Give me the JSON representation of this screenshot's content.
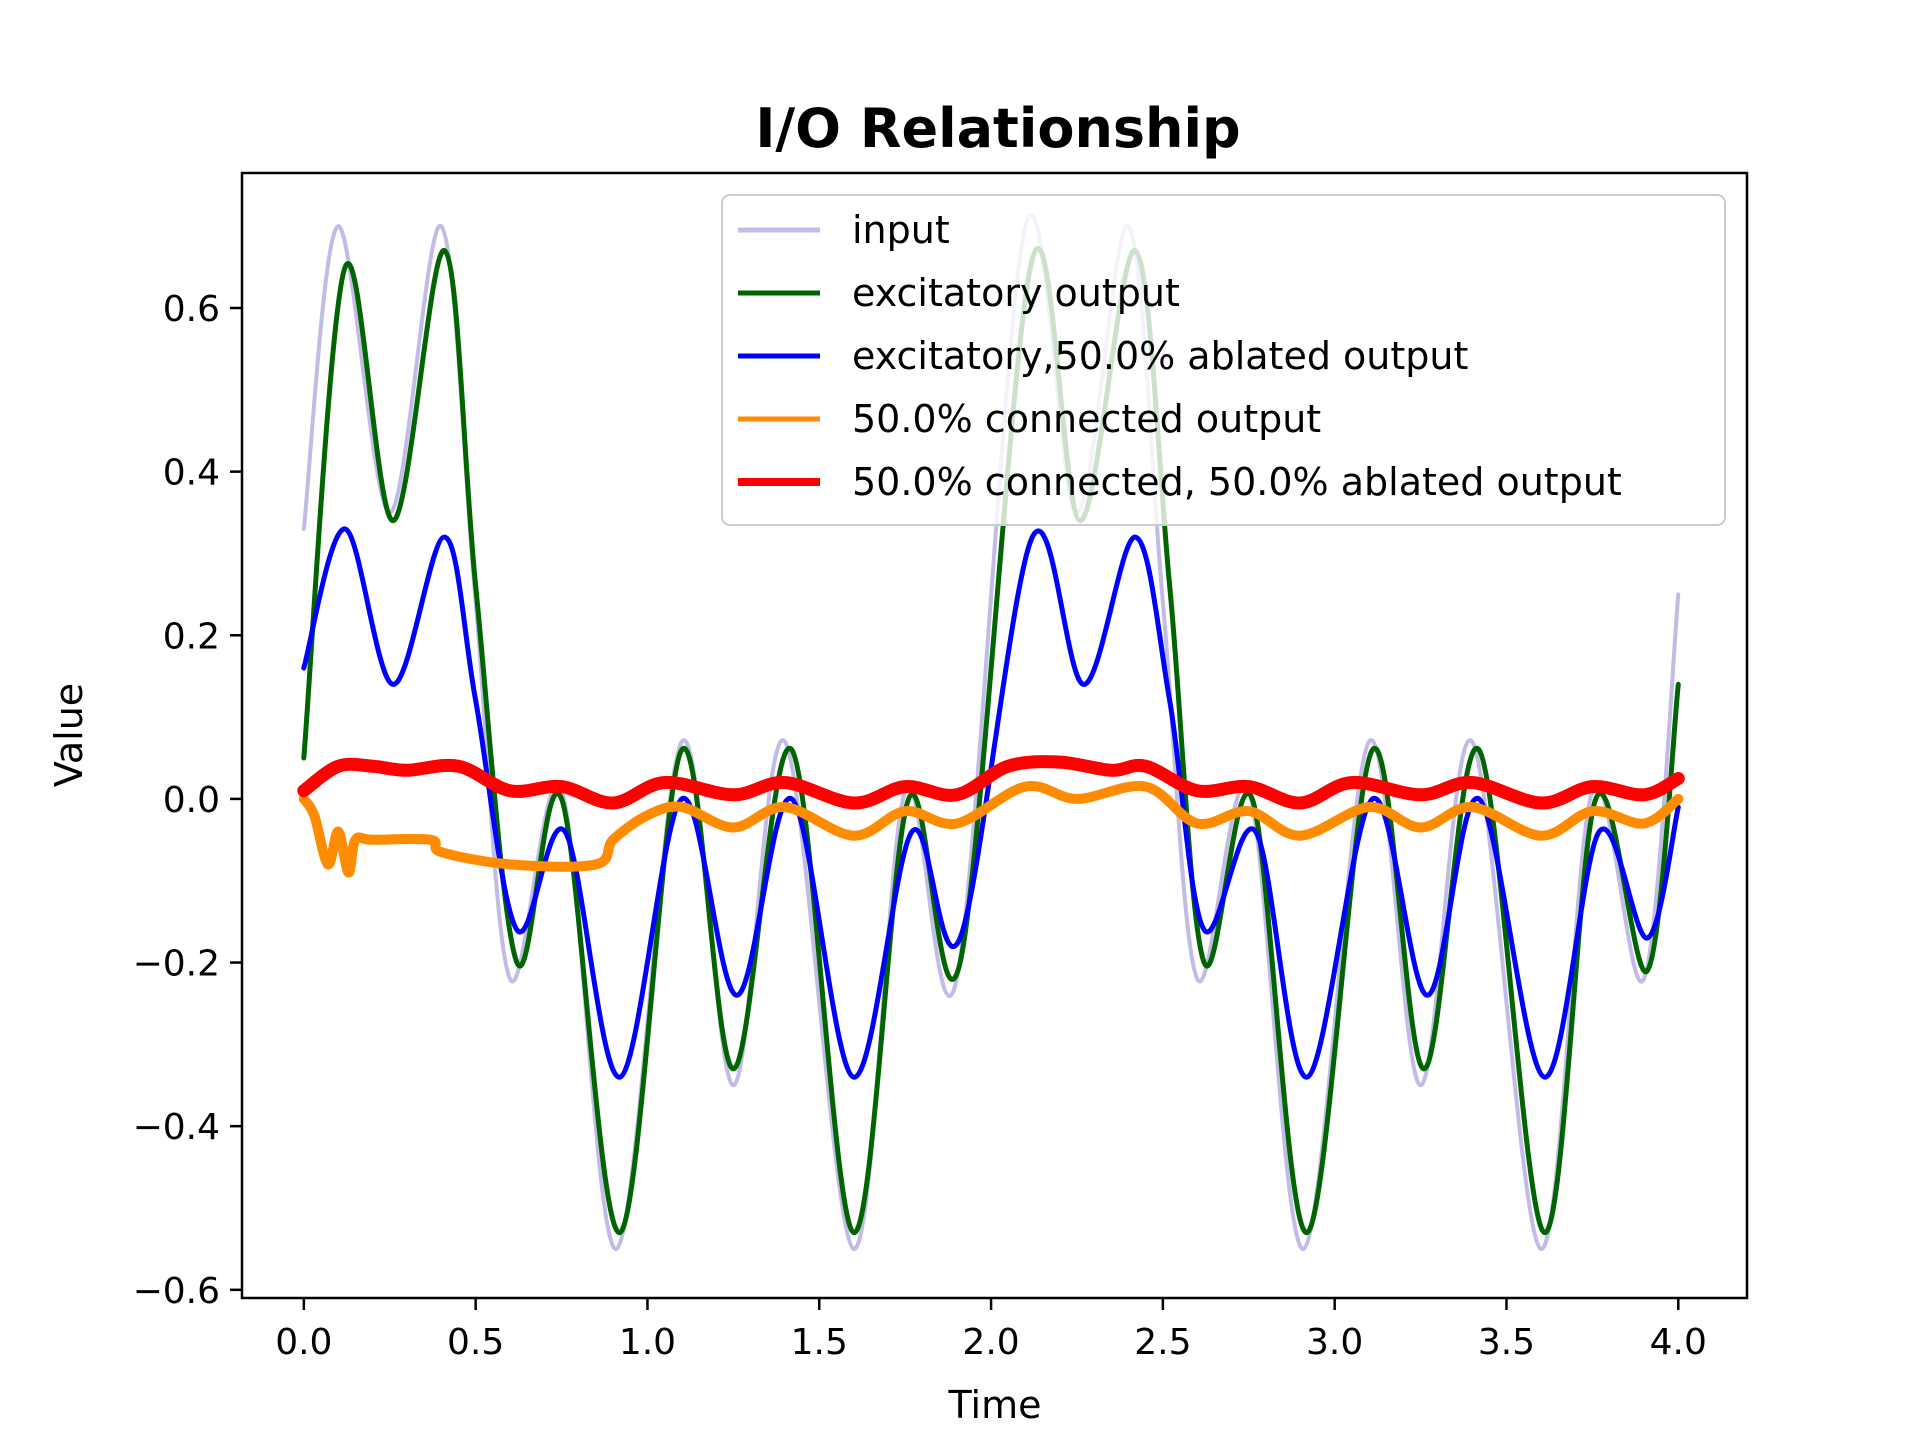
{
  "chart_data": {
    "type": "line",
    "title": "I/O Relationship",
    "xlabel": "Time",
    "ylabel": "Value",
    "xlim": [
      -0.18,
      4.2
    ],
    "ylim": [
      -0.61,
      0.765
    ],
    "xticks": [
      0.0,
      0.5,
      1.0,
      1.5,
      2.0,
      2.5,
      3.0,
      3.5,
      4.0
    ],
    "xtick_labels": [
      "0.0",
      "0.5",
      "1.0",
      "1.5",
      "2.0",
      "2.5",
      "3.0",
      "3.5",
      "4.0"
    ],
    "yticks": [
      -0.6,
      -0.4,
      -0.2,
      0.0,
      0.2,
      0.4,
      0.6
    ],
    "ytick_labels": [
      "−0.6",
      "−0.4",
      "−0.2",
      "0.0",
      "0.2",
      "0.4",
      "0.6"
    ],
    "grid": false,
    "legend_position": "upper right",
    "series": [
      {
        "name": "input",
        "color": "#c0bce6",
        "x": [
          0.0,
          0.1,
          0.25,
          0.4,
          0.5,
          0.6,
          0.75,
          0.91,
          1.1,
          1.25,
          1.4,
          1.6,
          1.75,
          1.9,
          2.1,
          2.25,
          2.4,
          2.5,
          2.6,
          2.75,
          2.91,
          3.1,
          3.25,
          3.4,
          3.6,
          3.75,
          3.9,
          4.0
        ],
        "y": [
          0.33,
          0.7,
          0.35,
          0.7,
          0.24,
          -0.22,
          0.01,
          -0.55,
          0.07,
          -0.35,
          0.07,
          -0.55,
          0.01,
          -0.22,
          0.7,
          0.35,
          0.7,
          0.24,
          -0.22,
          0.01,
          -0.55,
          0.07,
          -0.35,
          0.07,
          -0.55,
          0.01,
          -0.22,
          0.25
        ]
      },
      {
        "name": "excitatory output",
        "color": "#006400",
        "x": [
          0.0,
          0.12,
          0.26,
          0.41,
          0.5,
          0.62,
          0.75,
          0.92,
          1.1,
          1.25,
          1.42,
          1.6,
          1.76,
          1.91,
          2.12,
          2.26,
          2.42,
          2.52,
          2.62,
          2.76,
          2.92,
          3.11,
          3.26,
          3.42,
          3.61,
          3.76,
          3.91,
          4.0
        ],
        "y": [
          0.05,
          0.65,
          0.34,
          0.67,
          0.26,
          -0.2,
          0.0,
          -0.53,
          0.06,
          -0.33,
          0.06,
          -0.53,
          0.0,
          -0.2,
          0.66,
          0.34,
          0.67,
          0.26,
          -0.2,
          0.0,
          -0.53,
          0.06,
          -0.33,
          0.06,
          -0.53,
          0.0,
          -0.21,
          0.14
        ]
      },
      {
        "name": "excitatory,50.0% ablated output",
        "color": "#0000ff",
        "x": [
          0.0,
          0.12,
          0.26,
          0.41,
          0.5,
          0.62,
          0.76,
          0.92,
          1.1,
          1.26,
          1.42,
          1.6,
          1.77,
          1.91,
          2.12,
          2.27,
          2.42,
          2.52,
          2.62,
          2.77,
          2.92,
          3.11,
          3.27,
          3.42,
          3.61,
          3.77,
          3.91,
          4.0
        ],
        "y": [
          0.16,
          0.33,
          0.14,
          0.32,
          0.12,
          -0.16,
          -0.04,
          -0.34,
          0.0,
          -0.24,
          0.0,
          -0.34,
          -0.04,
          -0.17,
          0.32,
          0.14,
          0.32,
          0.12,
          -0.16,
          -0.04,
          -0.34,
          0.0,
          -0.24,
          0.0,
          -0.34,
          -0.04,
          -0.17,
          -0.01
        ]
      },
      {
        "name": "50.0% connected output",
        "color": "#ff8c00",
        "x": [
          0.0,
          0.03,
          0.07,
          0.1,
          0.13,
          0.15,
          0.2,
          0.37,
          0.4,
          0.6,
          0.85,
          0.9,
          1.0,
          1.1,
          1.25,
          1.4,
          1.6,
          1.75,
          1.9,
          2.1,
          2.25,
          2.45,
          2.6,
          2.75,
          2.9,
          3.1,
          3.25,
          3.4,
          3.6,
          3.75,
          3.9,
          4.0
        ],
        "y": [
          0.0,
          -0.02,
          -0.08,
          -0.04,
          -0.09,
          -0.05,
          -0.05,
          -0.05,
          -0.065,
          -0.08,
          -0.08,
          -0.05,
          -0.02,
          -0.01,
          -0.035,
          -0.01,
          -0.045,
          -0.015,
          -0.03,
          0.015,
          0.0,
          0.015,
          -0.03,
          -0.015,
          -0.045,
          -0.01,
          -0.035,
          -0.01,
          -0.045,
          -0.015,
          -0.03,
          0.0
        ]
      },
      {
        "name": "50.0% connected, 50.0% ablated output",
        "color": "#ff0000",
        "x": [
          0.0,
          0.1,
          0.2,
          0.3,
          0.45,
          0.6,
          0.75,
          0.9,
          1.05,
          1.25,
          1.4,
          1.6,
          1.75,
          1.9,
          2.05,
          2.2,
          2.35,
          2.45,
          2.6,
          2.75,
          2.9,
          3.05,
          3.25,
          3.4,
          3.6,
          3.75,
          3.9,
          4.0
        ],
        "y": [
          0.01,
          0.04,
          0.04,
          0.035,
          0.04,
          0.01,
          0.015,
          -0.005,
          0.02,
          0.005,
          0.02,
          -0.005,
          0.015,
          0.005,
          0.04,
          0.045,
          0.035,
          0.04,
          0.01,
          0.015,
          -0.005,
          0.02,
          0.005,
          0.02,
          -0.005,
          0.015,
          0.005,
          0.025
        ]
      }
    ]
  }
}
